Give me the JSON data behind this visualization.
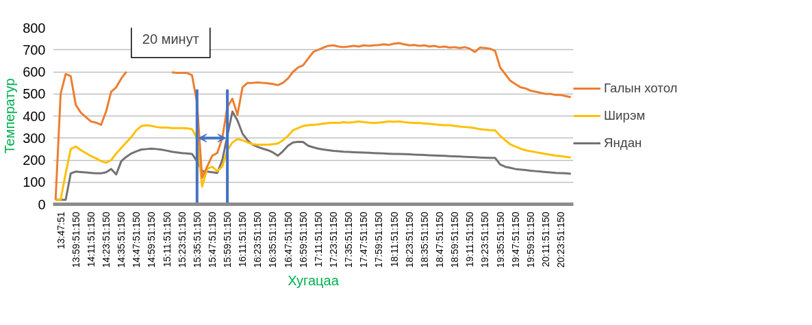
{
  "chart_data": {
    "type": "line",
    "xlabel": "Хугацаа",
    "ylabel": "Температур",
    "categories": [
      null,
      "13:47:51",
      null,
      null,
      "13:59:51:150",
      null,
      null,
      "14:11:51:150",
      null,
      null,
      "14:23:51:150",
      null,
      null,
      "14:35:51:150",
      null,
      null,
      "14:47:51:150",
      null,
      null,
      "14:59:51:150",
      null,
      null,
      "15:11:51:150",
      null,
      null,
      "15:23:51:150",
      null,
      null,
      "15:35:51:150",
      null,
      null,
      "15:47:51:150",
      null,
      null,
      "15:59:51:150",
      null,
      null,
      "16:11:51:150",
      null,
      null,
      "16:23:51:150",
      null,
      null,
      "16:35:51:150",
      null,
      null,
      "16:47:51:150",
      null,
      null,
      "16:59:51:150",
      null,
      null,
      "17:11:51:150",
      null,
      null,
      "17:23:51:150",
      null,
      null,
      "17:35:51:150",
      null,
      null,
      "17:47:51:150",
      null,
      null,
      "17:59:51:150",
      null,
      null,
      "18:11:51:150",
      null,
      null,
      "18:23:51:150",
      null,
      null,
      "18:35:51:150",
      null,
      null,
      "18:47:51:150",
      null,
      null,
      "18:59:51:150",
      null,
      null,
      "19:11:51:150",
      null,
      null,
      "19:23:51:150",
      null,
      null,
      "19:35:51:150",
      null,
      null,
      "19:47:51:150",
      null,
      null,
      "19:59:51:150",
      null,
      null,
      "20:11:51:150",
      null,
      null,
      "20:23:51:150",
      null,
      null
    ],
    "ylim": [
      0,
      800
    ],
    "yticks": [
      0,
      100,
      200,
      300,
      400,
      500,
      600,
      700,
      800
    ],
    "grid": "y",
    "legend": "right",
    "marker": "none",
    "line_style": "solid",
    "ref_lines": [
      {
        "axis": "x",
        "value": "15:35:51:150",
        "label": null,
        "color": "#4472c4"
      },
      {
        "axis": "x",
        "value": "15:59:51:150",
        "label": null,
        "color": "#4472c4"
      }
    ],
    "annotations": [
      "20 минут"
    ],
    "series": [
      {
        "name": "Галын хотол",
        "color": "#ed7d31",
        "values": [
          20,
          500,
          590,
          580,
          450,
          415,
          395,
          375,
          370,
          360,
          420,
          510,
          530,
          570,
          600,
          null,
          null,
          null,
          null,
          null,
          null,
          null,
          null,
          598,
          595,
          595,
          595,
          585,
          460,
          120,
          170,
          220,
          232,
          300,
          440,
          478,
          405,
          530,
          550,
          550,
          552,
          550,
          548,
          545,
          540,
          550,
          570,
          600,
          620,
          630,
          660,
          690,
          700,
          710,
          718,
          720,
          715,
          712,
          715,
          718,
          715,
          720,
          718,
          720,
          722,
          725,
          722,
          728,
          730,
          725,
          720,
          722,
          718,
          720,
          715,
          718,
          712,
          715,
          710,
          712,
          708,
          712,
          705,
          690,
          710,
          708,
          705,
          695,
          620,
          590,
          560,
          545,
          530,
          525,
          515,
          510,
          505,
          500,
          500,
          495,
          495,
          490,
          485
        ]
      },
      {
        "name": "Ширэм",
        "color": "#ffc000",
        "values": [
          20,
          20,
          140,
          250,
          262,
          245,
          232,
          218,
          208,
          195,
          188,
          200,
          230,
          255,
          280,
          305,
          335,
          355,
          358,
          355,
          350,
          347,
          348,
          345,
          345,
          345,
          344,
          340,
          300,
          80,
          160,
          170,
          150,
          170,
          245,
          280,
          295,
          290,
          280,
          272,
          270,
          270,
          270,
          272,
          275,
          290,
          310,
          335,
          345,
          355,
          358,
          360,
          362,
          365,
          368,
          370,
          368,
          372,
          370,
          372,
          375,
          372,
          370,
          368,
          370,
          372,
          375,
          374,
          375,
          372,
          370,
          368,
          368,
          366,
          364,
          362,
          360,
          358,
          358,
          355,
          352,
          350,
          348,
          345,
          340,
          338,
          336,
          335,
          310,
          290,
          272,
          262,
          252,
          245,
          240,
          236,
          232,
          228,
          224,
          220,
          218,
          215,
          212
        ]
      },
      {
        "name": "Яндан",
        "color": "#767171",
        "values": [
          20,
          20,
          20,
          140,
          148,
          146,
          144,
          142,
          140,
          140,
          145,
          160,
          135,
          195,
          215,
          230,
          240,
          248,
          250,
          252,
          250,
          247,
          243,
          238,
          235,
          232,
          230,
          228,
          195,
          150,
          148,
          145,
          142,
          200,
          310,
          420,
          380,
          320,
          290,
          270,
          260,
          252,
          245,
          235,
          220,
          240,
          265,
          280,
          283,
          282,
          265,
          258,
          252,
          248,
          245,
          242,
          240,
          238,
          237,
          236,
          235,
          234,
          233,
          232,
          231,
          230,
          229,
          228,
          228,
          227,
          226,
          225,
          224,
          223,
          222,
          221,
          220,
          219,
          218,
          217,
          216,
          215,
          214,
          213,
          212,
          211,
          210,
          210,
          180,
          170,
          165,
          160,
          157,
          155,
          152,
          150,
          148,
          146,
          144,
          142,
          141,
          140,
          138
        ]
      }
    ]
  }
}
